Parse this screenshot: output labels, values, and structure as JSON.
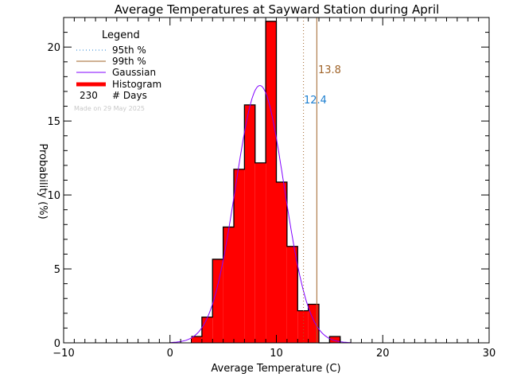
{
  "chart_data": {
    "type": "bar",
    "title": "Average Temperatures at Sayward Station during April",
    "xlabel": "Average Temperature (C)",
    "ylabel": "Probability (%)",
    "xlim": [
      -10,
      30
    ],
    "ylim": [
      0,
      22
    ],
    "x_ticks": [
      -10,
      0,
      10,
      20,
      30
    ],
    "y_ticks": [
      0,
      5,
      10,
      15,
      20
    ],
    "bin_width": 1,
    "bin_starts": [
      2,
      3,
      4,
      5,
      6,
      7,
      8,
      9,
      10,
      11,
      12,
      13,
      14,
      15
    ],
    "values": [
      0.43,
      1.74,
      5.65,
      7.83,
      11.74,
      16.09,
      12.17,
      21.74,
      10.87,
      6.52,
      2.17,
      2.61,
      0,
      0.43
    ],
    "gaussian": {
      "mean": 8.45,
      "sigma": 2.29,
      "peak": 17.4
    },
    "percentile_95": {
      "value": 12.4,
      "label": "12.4",
      "color": "#1e7fd0"
    },
    "percentile_99": {
      "value": 13.8,
      "label": "13.8",
      "color": "#a0642a"
    },
    "colors": {
      "histogram": "#ff0000",
      "gaussian": "#8000ff"
    },
    "legend": {
      "title": "Legend",
      "items": [
        "95th %",
        "99th %",
        "Gaussian",
        "Histogram"
      ],
      "days_count": "230",
      "days_label": "# Days",
      "placement": "top-left"
    },
    "footnote": "Made on 29 May 2025"
  }
}
